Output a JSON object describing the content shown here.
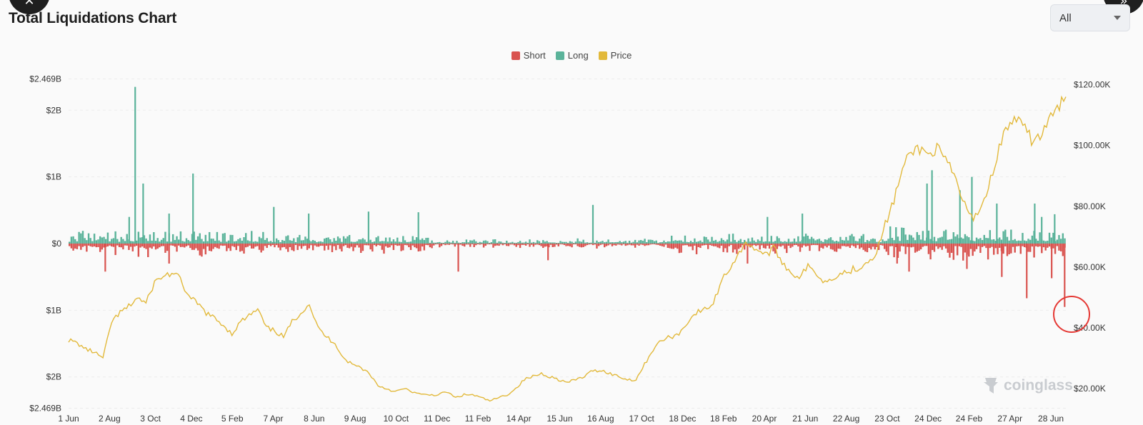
{
  "header": {
    "title": "Total Liquidations Chart",
    "range_select": "All"
  },
  "watermark": "coinglass",
  "chart_data": {
    "type": "bar",
    "title": "Total Liquidations Chart",
    "legend_position": "top-center",
    "grid": true,
    "colors": {
      "short": "#d9534f",
      "long": "#5bb39a",
      "price": "#e2b93b"
    },
    "series_names": {
      "short": "Short",
      "long": "Long",
      "price": "Price"
    },
    "y_left": {
      "range": [
        -2.469,
        2.469
      ],
      "unit": "billion USD",
      "ticks": [
        {
          "v": 2.469,
          "label": "$2.469B"
        },
        {
          "v": 2,
          "label": "$2B"
        },
        {
          "v": 1,
          "label": "$1B"
        },
        {
          "v": 0,
          "label": "$0"
        },
        {
          "v": -1,
          "label": "$1B"
        },
        {
          "v": -2,
          "label": "$2B"
        },
        {
          "v": -2.469,
          "label": "$2.469B"
        }
      ]
    },
    "y_right": {
      "range": [
        13.7,
        122.0
      ],
      "unit": "thousand USD",
      "ticks": [
        {
          "v": 120,
          "label": "$120.00K"
        },
        {
          "v": 100,
          "label": "$100.00K"
        },
        {
          "v": 80,
          "label": "$80.00K"
        },
        {
          "v": 60,
          "label": "$60.00K"
        },
        {
          "v": 40,
          "label": "$40.00K"
        },
        {
          "v": 20,
          "label": "$20.00K"
        }
      ]
    },
    "x_ticks": [
      "1 Jun",
      "2 Aug",
      "3 Oct",
      "4 Dec",
      "5 Feb",
      "7 Apr",
      "8 Jun",
      "9 Aug",
      "10 Oct",
      "11 Dec",
      "11 Feb",
      "14 Apr",
      "15 Jun",
      "16 Aug",
      "17 Oct",
      "18 Dec",
      "18 Feb",
      "20 Apr",
      "21 Jun",
      "22 Aug",
      "23 Oct",
      "24 Dec",
      "24 Feb",
      "27 Apr",
      "28 Jun"
    ],
    "price": [
      36,
      35,
      33,
      32,
      30,
      42,
      45,
      47,
      50,
      48,
      55,
      57,
      58,
      56,
      50,
      48,
      45,
      43,
      41,
      38,
      42,
      44,
      46,
      40,
      39,
      37,
      42,
      45,
      48,
      40,
      37,
      35,
      30,
      28,
      27,
      25,
      21,
      20,
      19,
      20,
      19,
      18,
      18,
      18,
      19,
      17,
      18,
      18,
      17,
      16,
      17,
      18,
      20,
      23,
      24,
      25,
      24,
      23,
      22,
      23,
      24,
      26,
      26,
      25,
      24,
      23,
      23,
      28,
      33,
      36,
      37,
      38,
      42,
      45,
      46,
      48,
      56,
      60,
      65,
      68,
      66,
      64,
      66,
      62,
      58,
      57,
      60,
      58,
      55,
      57,
      58,
      59,
      60,
      62,
      65,
      74,
      82,
      92,
      98,
      99,
      97,
      99,
      95,
      90,
      82,
      76,
      79,
      86,
      97,
      105,
      109,
      106,
      102,
      103,
      108,
      112,
      116
    ],
    "long_spikes": [
      {
        "x": 0.06,
        "v": 0.4
      },
      {
        "x": 0.066,
        "v": 2.35
      },
      {
        "x": 0.074,
        "v": 0.9
      },
      {
        "x": 0.124,
        "v": 1.05
      },
      {
        "x": 0.1,
        "v": 0.45
      },
      {
        "x": 0.205,
        "v": 0.55
      },
      {
        "x": 0.24,
        "v": 0.45
      },
      {
        "x": 0.3,
        "v": 0.48
      },
      {
        "x": 0.35,
        "v": 0.47
      },
      {
        "x": 0.525,
        "v": 0.58
      },
      {
        "x": 0.7,
        "v": 0.4
      },
      {
        "x": 0.735,
        "v": 0.45
      },
      {
        "x": 0.86,
        "v": 0.9
      },
      {
        "x": 0.865,
        "v": 1.1
      },
      {
        "x": 0.893,
        "v": 0.8
      },
      {
        "x": 0.905,
        "v": 1.0
      },
      {
        "x": 0.93,
        "v": 0.6
      },
      {
        "x": 0.968,
        "v": 0.6
      },
      {
        "x": 0.975,
        "v": 0.4
      },
      {
        "x": 0.988,
        "v": 0.44
      }
    ],
    "short_spikes": [
      {
        "x": 0.036,
        "v": -0.42
      },
      {
        "x": 0.1,
        "v": -0.3
      },
      {
        "x": 0.39,
        "v": -0.42
      },
      {
        "x": 0.48,
        "v": -0.25
      },
      {
        "x": 0.68,
        "v": -0.3
      },
      {
        "x": 0.83,
        "v": -0.3
      },
      {
        "x": 0.842,
        "v": -0.42
      },
      {
        "x": 0.9,
        "v": -0.38
      },
      {
        "x": 0.935,
        "v": -0.5
      },
      {
        "x": 0.96,
        "v": -0.82
      },
      {
        "x": 0.985,
        "v": -0.52
      },
      {
        "x": 0.998,
        "v": -0.95
      }
    ]
  }
}
